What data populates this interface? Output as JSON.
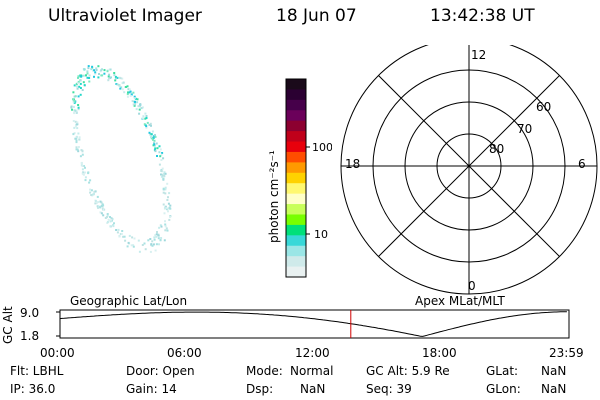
{
  "header": {
    "title": "Ultraviolet Imager",
    "date": "18 Jun 07",
    "time": "13:42:38 UT"
  },
  "colorbar": {
    "unit_label": "photon cm⁻²s⁻¹",
    "tick_100": "100",
    "tick_10": "10",
    "colors": [
      "#1a0a1a",
      "#2b0032",
      "#46004a",
      "#6b005a",
      "#8c0030",
      "#c0001a",
      "#e8000c",
      "#ff4d00",
      "#ff9900",
      "#ffd200",
      "#fff870",
      "#ffffc8",
      "#c8ff5a",
      "#78ff00",
      "#00e07a",
      "#38d8d8",
      "#9ae6e6",
      "#cfeaea",
      "#e9f1f1"
    ]
  },
  "polar": {
    "mlt_top": "12",
    "mlt_left": "18",
    "mlt_right": "6",
    "mlt_bottom": "0",
    "lat_60": "60",
    "lat_70": "70",
    "lat_80": "80"
  },
  "orbit": {
    "left_title": "Geographic Lat/Lon",
    "right_title": "Apex MLat/MLT",
    "y_label": "GC Alt",
    "y_top": "9.0",
    "y_bottom": "1.8",
    "x_ticks": [
      "00:00",
      "06:00",
      "12:00",
      "18:00",
      "23:59"
    ],
    "current_time_hours": 13.71
  },
  "info": {
    "flt": "Flt: LBHL",
    "ip": "IP: 36.0",
    "door": "Door: Open",
    "gain": "Gain: 14",
    "mode_label": "Mode:",
    "mode_value": "Normal",
    "dsp_label": "Dsp:",
    "dsp_value": "NaN",
    "gc_alt": "GC Alt: 5.9 Re",
    "seq": "Seq: 39",
    "glat_label": "GLat:",
    "glat_value": "NaN",
    "glon_label": "GLon:",
    "glon_value": "NaN"
  }
}
